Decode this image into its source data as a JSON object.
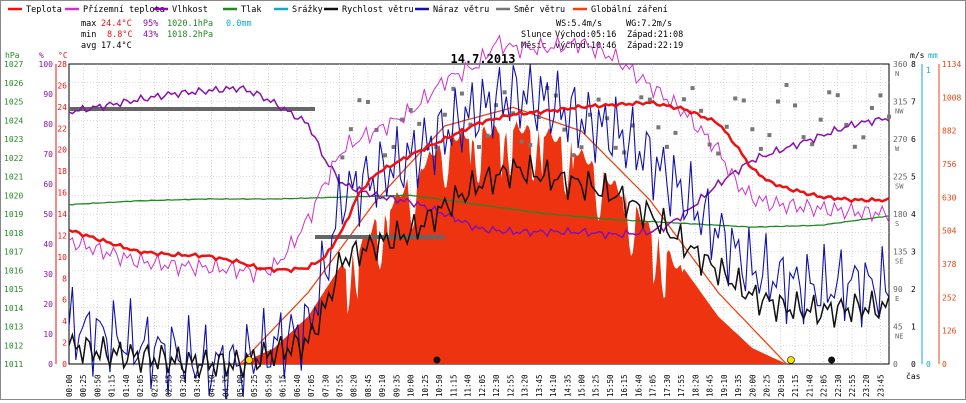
{
  "legend": [
    {
      "label": "Teplota",
      "color": "#ee1111"
    },
    {
      "label": "Přízemní teplota",
      "color": "#cc33cc"
    },
    {
      "label": "Vlhkost",
      "color": "#8811aa"
    },
    {
      "label": "Tlak",
      "color": "#228822"
    },
    {
      "label": "Srážky",
      "color": "#11aacc"
    },
    {
      "label": "Rychlost větru",
      "color": "#111111"
    },
    {
      "label": "Náraz větru",
      "color": "#1111aa"
    },
    {
      "label": "Směr větru",
      "color": "#777777"
    },
    {
      "label": "Globální záření",
      "color": "#ee4411"
    }
  ],
  "stats": {
    "max": {
      "label": "max",
      "temp": "24.4°C",
      "hum": "95%",
      "press": "1020.1hPa",
      "rain": "0.0mm"
    },
    "min": {
      "label": "min",
      "temp": "8.8°C",
      "hum": "43%",
      "press": "1018.2hPa"
    },
    "avg": {
      "label": "avg",
      "temp": "17.4°C"
    }
  },
  "wind_info": {
    "ws": "WS:5.4m/s",
    "wg": "WG:7.2m/s"
  },
  "sun": {
    "label": "Slunce",
    "rise": "Východ:05:16",
    "set": "Západ:21:08"
  },
  "moon": {
    "label": "Měsíc",
    "rise": "Východ:10:46",
    "set": "Západ:22:19"
  },
  "colors": {
    "grid": "#bbbbbb",
    "hum_dots": "#dd2222",
    "press": "#228822",
    "rain": "#11aacc"
  },
  "chart_data": {
    "type": "line",
    "title": "14.7.2013",
    "x_label": "čas",
    "x_ticks": [
      "00:00",
      "00:25",
      "00:50",
      "01:15",
      "01:40",
      "02:05",
      "02:30",
      "02:55",
      "03:20",
      "03:45",
      "04:10",
      "04:35",
      "05:00",
      "05:25",
      "05:50",
      "06:15",
      "06:40",
      "07:05",
      "07:30",
      "07:55",
      "08:20",
      "08:45",
      "09:10",
      "09:35",
      "10:00",
      "10:25",
      "10:50",
      "11:15",
      "11:40",
      "12:05",
      "12:30",
      "12:55",
      "13:20",
      "13:45",
      "14:10",
      "14:35",
      "15:00",
      "15:25",
      "15:50",
      "16:15",
      "16:40",
      "17:05",
      "17:30",
      "17:55",
      "18:20",
      "18:45",
      "19:10",
      "19:35",
      "20:00",
      "20:25",
      "20:50",
      "21:15",
      "21:40",
      "22:05",
      "22:30",
      "22:55",
      "23:20",
      "23:45"
    ],
    "axes": {
      "pressure": {
        "unit": "hPa",
        "ticks": [
          1011,
          1012,
          1013,
          1014,
          1015,
          1016,
          1017,
          1018,
          1019,
          1020,
          1021,
          1022,
          1023,
          1024,
          1025,
          1026,
          1027
        ]
      },
      "humidity": {
        "unit": "%",
        "ticks": [
          0,
          10,
          20,
          30,
          40,
          50,
          60,
          70,
          80,
          90,
          100
        ]
      },
      "temperature": {
        "unit": "°C",
        "ticks": [
          0,
          2,
          4,
          6,
          8,
          10,
          12,
          14,
          16,
          18,
          20,
          22,
          24,
          26,
          28
        ]
      },
      "wind_speed": {
        "unit": "m/s",
        "ticks": [
          0,
          1,
          2,
          3,
          4,
          5,
          6,
          7,
          8
        ]
      },
      "precip": {
        "unit": "mm",
        "ticks": [
          0,
          1
        ]
      },
      "wind_dir": {
        "ticks": [
          "0",
          "45",
          "90",
          "135",
          "180",
          "225",
          "270",
          "315",
          "360"
        ],
        "dirs": [
          "",
          "NE",
          "E",
          "SE",
          "S",
          "SW",
          "W",
          "NW",
          "N"
        ]
      },
      "radiation": {
        "ticks": [
          0,
          126,
          252,
          378,
          504,
          630,
          756,
          882,
          1008,
          1134
        ]
      }
    },
    "series": [
      {
        "name": "Teplota",
        "unit": "°C",
        "x": [
          0,
          1,
          2,
          3,
          4,
          5,
          5.5,
          6,
          6.5,
          7,
          7.5,
          8,
          8.5,
          9,
          10,
          11,
          12,
          13,
          14,
          15,
          16,
          17,
          18,
          19,
          19.5,
          20,
          20.5,
          21,
          22,
          23,
          24
        ],
        "values": [
          12.5,
          11.5,
          10.5,
          10.2,
          10.1,
          9.5,
          9.0,
          8.8,
          8.8,
          9.0,
          10.0,
          12.5,
          16.0,
          17.8,
          19.5,
          21.0,
          22.5,
          23.3,
          23.6,
          24.0,
          24.2,
          24.4,
          23.8,
          22.5,
          20.5,
          18.2,
          17.0,
          16.4,
          15.6,
          15.3,
          15.3
        ]
      },
      {
        "name": "Přízemní teplota",
        "unit": "°C",
        "x": [
          0,
          1,
          2,
          3,
          4,
          5,
          5.5,
          6,
          6.5,
          7,
          7.5,
          8,
          8.5,
          9,
          10,
          11,
          12,
          12.5,
          13,
          14,
          15,
          16,
          17,
          18,
          19,
          19.5,
          20,
          20.5,
          21,
          22,
          23,
          24
        ],
        "values": [
          11.5,
          10.5,
          9.6,
          9.2,
          9.0,
          8.8,
          8.5,
          9.0,
          11.0,
          13.5,
          17.0,
          20.0,
          21.0,
          21.8,
          23.5,
          26.5,
          28.0,
          30.0,
          29.5,
          29.5,
          30.0,
          28.5,
          26.0,
          23.5,
          20.0,
          17.0,
          15.5,
          15.0,
          14.8,
          14.5,
          14.2,
          14.0
        ]
      },
      {
        "name": "Vlhkost",
        "unit": "%",
        "x": [
          0,
          1,
          2,
          3,
          4,
          5,
          5.5,
          6,
          7,
          7.5,
          8,
          8.5,
          9,
          10,
          11,
          12,
          13,
          14,
          15,
          16,
          17,
          17.5,
          18,
          19,
          20,
          21,
          22,
          23,
          24
        ],
        "values": [
          84,
          86,
          88,
          90,
          91,
          92,
          90,
          87,
          80,
          68,
          60,
          58,
          56,
          54,
          50,
          45,
          44,
          44,
          44,
          43,
          44,
          46,
          50,
          60,
          68,
          72,
          76,
          80,
          82
        ]
      },
      {
        "name": "Tlak",
        "unit": "hPa",
        "x": [
          0,
          2,
          4,
          6,
          8,
          10,
          12,
          14,
          16,
          18,
          20,
          22,
          24
        ],
        "values": [
          1019.5,
          1019.7,
          1019.8,
          1019.8,
          1019.9,
          1020.0,
          1019.5,
          1019.0,
          1018.7,
          1018.5,
          1018.3,
          1018.4,
          1018.9
        ]
      },
      {
        "name": "Rychlost větru",
        "unit": "m/s",
        "x": [
          0,
          1,
          2,
          3,
          4,
          5,
          6,
          7,
          7.5,
          8,
          9,
          10,
          11,
          12,
          13,
          14,
          15,
          16,
          17,
          18,
          19,
          20,
          21,
          22,
          23,
          24
        ],
        "values": [
          0.5,
          0.3,
          0.2,
          0.1,
          0,
          0,
          0.3,
          0.6,
          1.5,
          2.8,
          3.2,
          3.5,
          4.2,
          4.8,
          5.2,
          5.0,
          4.8,
          4.5,
          4.0,
          3.2,
          2.5,
          1.8,
          1.5,
          1.4,
          1.5,
          1.5
        ]
      },
      {
        "name": "Náraz větru",
        "unit": "m/s",
        "x": [
          0,
          1,
          2,
          3,
          4,
          5,
          6,
          7,
          7.5,
          8,
          9,
          10,
          11,
          12,
          13,
          14,
          15,
          16,
          17,
          18,
          19,
          20,
          21,
          22,
          23,
          24
        ],
        "values": [
          1.0,
          0.8,
          0.5,
          0.3,
          0,
          0,
          0.5,
          1.0,
          2.5,
          4.5,
          5.0,
          5.5,
          6.2,
          6.8,
          7.2,
          7.0,
          6.5,
          6.2,
          5.5,
          4.5,
          3.5,
          2.5,
          2.2,
          2.0,
          2.2,
          2.0
        ]
      },
      {
        "name": "Globální záření",
        "unit": "W/m2",
        "x": [
          5,
          6,
          7,
          8,
          9,
          10,
          11,
          12,
          13,
          14,
          15,
          16,
          17,
          18,
          19,
          20,
          21
        ],
        "values": [
          0,
          60,
          180,
          380,
          560,
          720,
          880,
          900,
          920,
          900,
          820,
          700,
          540,
          360,
          180,
          60,
          0
        ]
      }
    ],
    "clear_sky_radiation": {
      "x": [
        5,
        7,
        9,
        11,
        13,
        15,
        17,
        19,
        21
      ],
      "values": [
        0,
        270,
        620,
        900,
        970,
        880,
        620,
        270,
        0
      ]
    },
    "wind_direction": {
      "unit": "°",
      "x": [
        8,
        9,
        10,
        11,
        12,
        13,
        14,
        15,
        16,
        17,
        18,
        19,
        20,
        21,
        22,
        23,
        24
      ],
      "values": [
        280,
        290,
        270,
        300,
        295,
        290,
        300,
        280,
        285,
        290,
        300,
        285,
        290,
        300,
        295,
        295,
        285
      ]
    },
    "daily_humidity_markers": [
      {
        "label": "max",
        "value": 95,
        "x": [
          0,
          7.2
        ]
      },
      {
        "label": "min",
        "value": 43,
        "x": [
          7.2,
          11
        ]
      }
    ]
  }
}
